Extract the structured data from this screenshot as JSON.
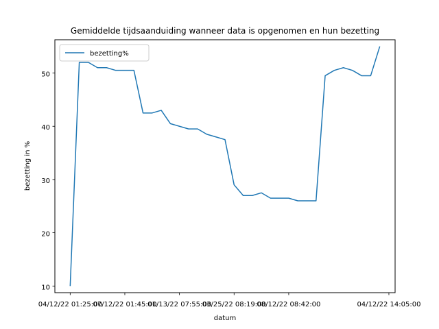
{
  "chart_data": {
    "type": "line",
    "title": "Gemiddelde tijdsaanduiding wanneer data is opgenomen en hun bezetting",
    "xlabel": "datum",
    "ylabel": "bezetting in %",
    "x_tick_labels": [
      "04/12/22 01:25:00",
      "07/12/22 01:45:00",
      "01/13/22 07:55:00",
      "03/25/22 08:19:00",
      "08/12/22 08:42:00",
      "04/12/22 14:05:00"
    ],
    "y_ticks": [
      10,
      20,
      30,
      40,
      50
    ],
    "ylim": [
      8.75,
      56.25
    ],
    "grid": false,
    "legend_position": "upper-left",
    "series": [
      {
        "name": "bezetting%",
        "color": "#1f77b4",
        "values": [
          10,
          52,
          52,
          51,
          51,
          50.5,
          50.5,
          50.5,
          42.5,
          42.5,
          43,
          40.5,
          40,
          39.5,
          39.5,
          38.5,
          38,
          37.5,
          29,
          27,
          27,
          27.5,
          26.5,
          26.5,
          26.5,
          26,
          26,
          26,
          49.5,
          50.5,
          51,
          50.5,
          49.5,
          49.5,
          55
        ]
      }
    ]
  }
}
